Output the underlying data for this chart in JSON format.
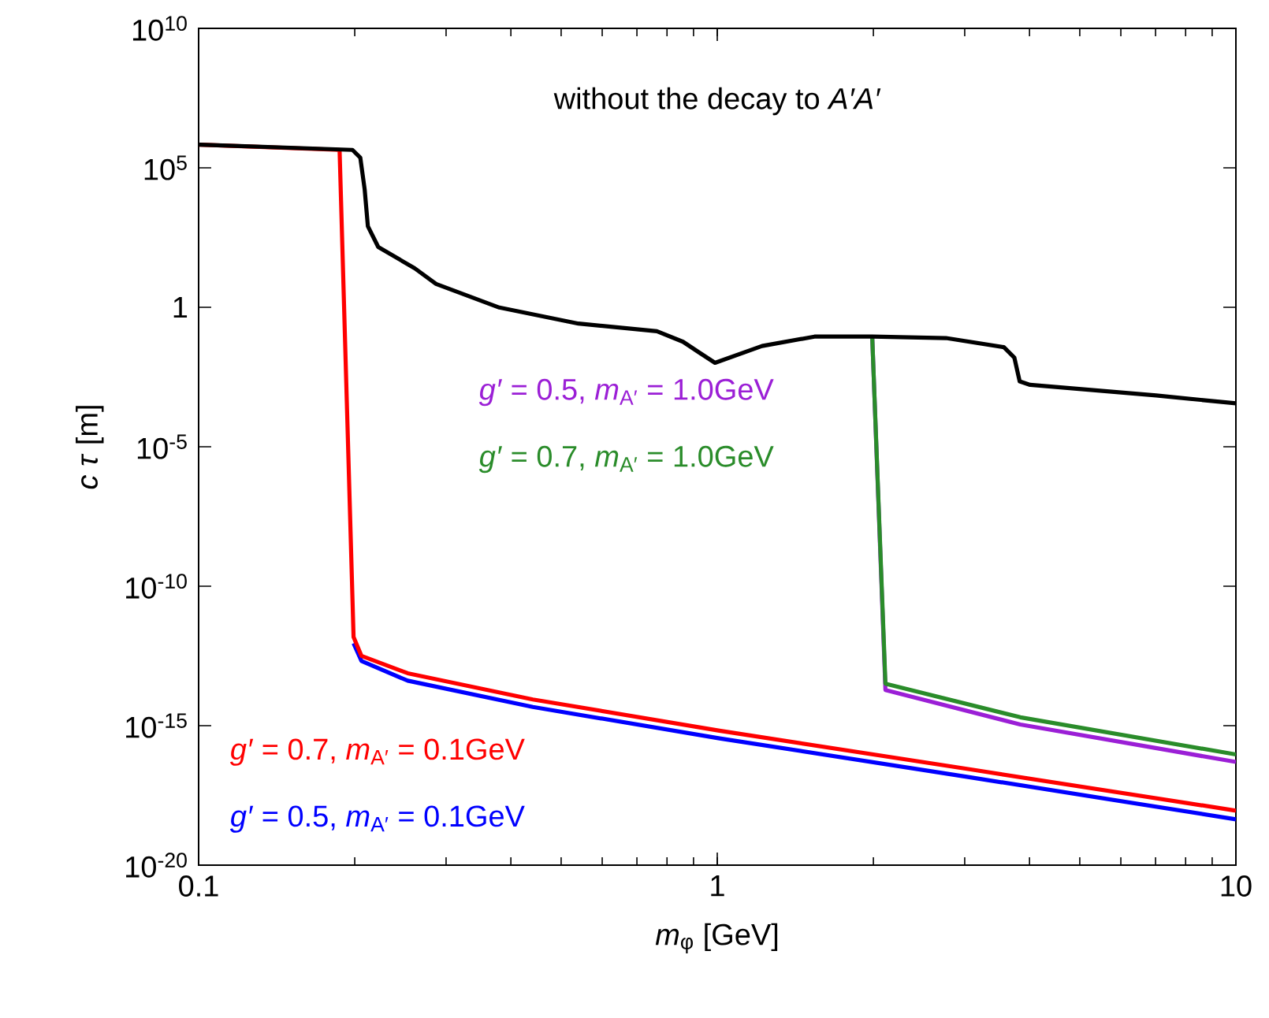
{
  "chart_data": {
    "type": "line",
    "log": "xy",
    "xlabel": "*m*$_{φ}$ [GeV]",
    "ylabel": "*c τ* [m]",
    "annotations": [
      "without the decay to *A′A′*"
    ],
    "xlim": [
      0.1,
      10
    ],
    "ylim": [
      1e-20,
      10000000000.0
    ],
    "xticks": [
      0.1,
      1,
      10
    ],
    "yticks": [
      {
        "value": 1e-20,
        "label": "10$^{-20}$"
      },
      {
        "value": 1e-15,
        "label": "10$^{-15}$"
      },
      {
        "value": 1e-10,
        "label": "10$^{-10}$"
      },
      {
        "value": 1e-05,
        "label": "10$^{-5}$"
      },
      1,
      {
        "value": 100000.0,
        "label": "10$^{5}$"
      },
      {
        "value": 10000000000.0,
        "label": "10$^{10}$"
      }
    ],
    "series": [
      {
        "name": "*g′* = 0.5, *m*$_{A′}$ = 0.1GeV",
        "color": "#0000ff",
        "x": [
          0.199,
          0.206,
          0.253,
          0.441,
          1.01,
          3.08,
          10
        ],
        "values": [
          9e-13,
          2.1e-13,
          4.1e-14,
          4.7e-15,
          3.5e-16,
          1.4e-17,
          4.4e-19
        ]
      },
      {
        "name": "*g′* = 0.7, *m*$_{A′}$ = 0.1GeV",
        "color": "#ff0000",
        "x": [
          0.1,
          0.187,
          0.199,
          0.206,
          0.253,
          0.441,
          1.01,
          3.08,
          10
        ],
        "values": [
          680000.0,
          440000.0,
          1.5e-12,
          3.2e-13,
          7.6e-14,
          8.7e-15,
          6.6e-16,
          2.7e-17,
          9e-19
        ]
      },
      {
        "name": "*g′* = 0.5, *m*$_{A′}$ = 1.0GeV",
        "color": "#9b1fd6",
        "x": [
          1.99,
          2.11,
          3.84,
          10
        ],
        "values": [
          0.089,
          1.9e-14,
          1.1e-15,
          5e-17
        ]
      },
      {
        "name": "*g′* = 0.7, *m*$_{A′}$ = 1.0GeV",
        "color": "#2a8c2a",
        "x": [
          1.99,
          2.11,
          3.84,
          10
        ],
        "values": [
          0.089,
          3.2e-14,
          2e-15,
          9.3e-17
        ]
      },
      {
        "color": "#000000",
        "x": [
          0.1,
          0.198,
          0.205,
          0.209,
          0.212,
          0.222,
          0.261,
          0.287,
          0.38,
          0.54,
          0.765,
          0.859,
          0.921,
          0.99,
          1.22,
          1.54,
          1.99,
          2.76,
          3.57,
          3.74,
          3.83,
          4.01,
          7.02,
          10
        ],
        "values": [
          680000.0,
          440000.0,
          230000.0,
          17000.0,
          810,
          145,
          25,
          6.9,
          0.98,
          0.26,
          0.138,
          0.058,
          0.0245,
          0.0102,
          0.041,
          0.089,
          0.089,
          0.079,
          0.037,
          0.0157,
          0.0022,
          0.00166,
          0.00069,
          0.00036
        ]
      }
    ]
  }
}
